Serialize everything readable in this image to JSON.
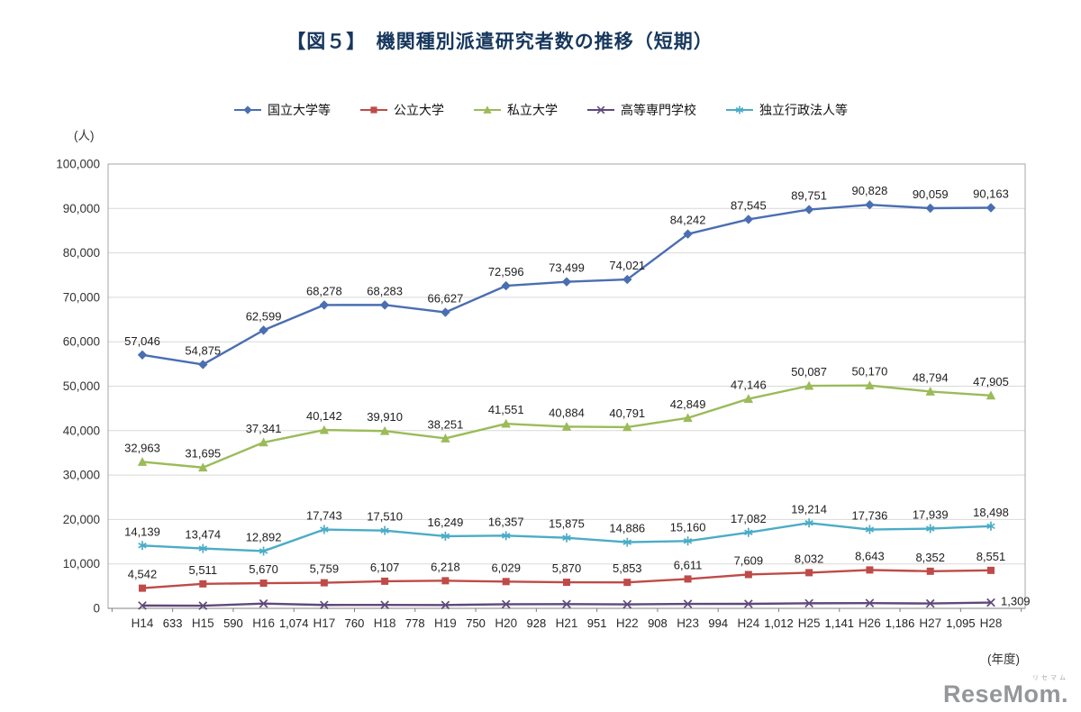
{
  "chart_data": {
    "type": "line",
    "title": "【図５】　機関種別派遣研究者数の推移（短期）",
    "ylabel": "(人)",
    "xlabel": "(年度)",
    "ylim": [
      0,
      100000
    ],
    "ytick_step": 10000,
    "grid": true,
    "legend_position": "top",
    "categories": [
      "H14",
      "H15",
      "H16",
      "H17",
      "H18",
      "H19",
      "H20",
      "H21",
      "H22",
      "H23",
      "H24",
      "H25",
      "H26",
      "H27",
      "H28"
    ],
    "series": [
      {
        "key": "national-universities",
        "name": "国立大学等",
        "color": "#4A6EB2",
        "marker": "diamond",
        "values": [
          57046,
          54875,
          62599,
          68278,
          68283,
          66627,
          72596,
          73499,
          74021,
          84242,
          87545,
          89751,
          90828,
          90059,
          90163
        ]
      },
      {
        "key": "public-universities",
        "name": "公立大学",
        "color": "#BE4B48",
        "marker": "square",
        "values": [
          4542,
          5511,
          5670,
          5759,
          6107,
          6218,
          6029,
          5870,
          5853,
          6611,
          7609,
          8032,
          8643,
          8352,
          8551
        ]
      },
      {
        "key": "private-universities",
        "name": "私立大学",
        "color": "#9BBB59",
        "marker": "triangle",
        "values": [
          32963,
          31695,
          37341,
          40142,
          39910,
          38251,
          41551,
          40884,
          40791,
          42849,
          47146,
          50087,
          50170,
          48794,
          47905
        ]
      },
      {
        "key": "technical-colleges",
        "name": "高等専門学校",
        "color": "#5F497A",
        "marker": "x",
        "labels_below_axis": true,
        "values": [
          633,
          590,
          1074,
          760,
          778,
          750,
          928,
          951,
          908,
          994,
          1012,
          1141,
          1186,
          1095,
          1309
        ]
      },
      {
        "key": "independent-agencies",
        "name": "独立行政法人等",
        "color": "#4BACC6",
        "marker": "asterisk",
        "values": [
          14139,
          13474,
          12892,
          17743,
          17510,
          16249,
          16357,
          15875,
          14886,
          15160,
          17082,
          19214,
          17736,
          17939,
          18498
        ]
      }
    ]
  },
  "watermark": {
    "main": "ReseMom.",
    "sub": "リセマム"
  }
}
